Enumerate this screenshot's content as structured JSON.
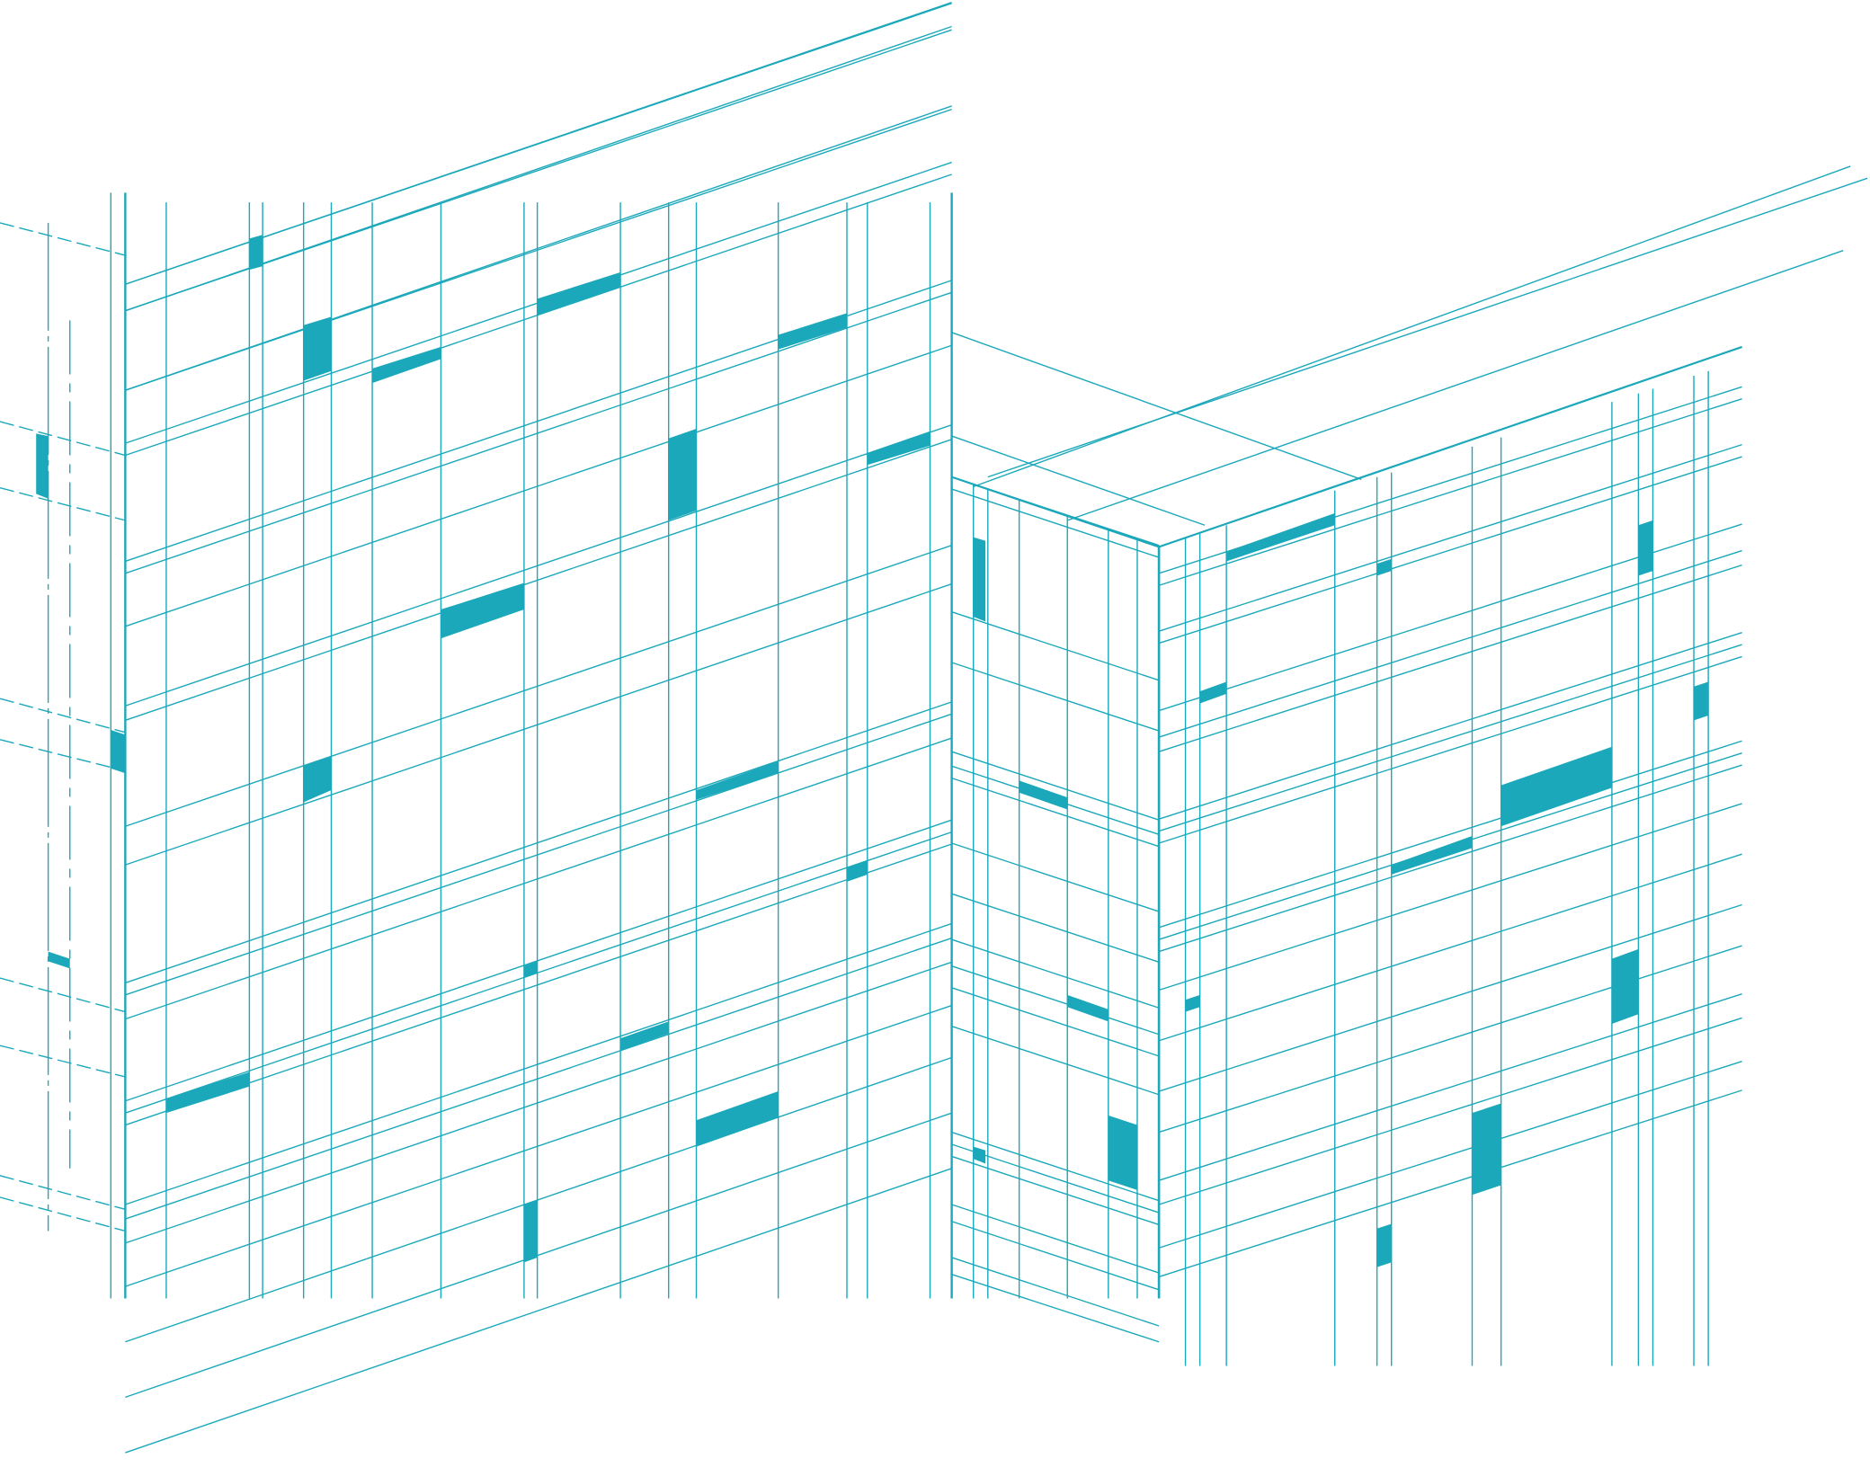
{
  "artwork": {
    "subject": "isometric-building-wireframe",
    "line_color": "#1ba8ba",
    "fill_color": "#1ba8ba",
    "background": "#ffffff"
  }
}
